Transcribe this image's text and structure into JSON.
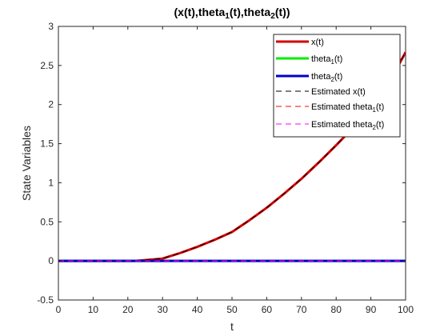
{
  "chart_data": {
    "type": "line",
    "title_parts": [
      "(x(t),theta",
      "1",
      "(t),theta",
      "2",
      "(t))"
    ],
    "xlabel": "t",
    "ylabel": "State Variables",
    "xlim": [
      0,
      100
    ],
    "ylim": [
      -0.5,
      3
    ],
    "xticks": [
      0,
      10,
      20,
      30,
      40,
      50,
      60,
      70,
      80,
      90,
      100
    ],
    "yticks": [
      -0.5,
      0,
      0.5,
      1,
      1.5,
      2,
      2.5,
      3
    ],
    "ytick_labels": [
      "-0.5",
      "0",
      "0.5",
      "1",
      "1.5",
      "2",
      "2.5",
      "3"
    ],
    "grid": false,
    "legend_position": "top-right",
    "x": [
      0,
      10,
      20,
      22,
      25,
      30,
      35,
      40,
      45,
      50,
      55,
      60,
      65,
      70,
      75,
      80,
      85,
      90,
      95,
      100
    ],
    "series": [
      {
        "key": "x",
        "legend_parts": [
          "x(t)"
        ],
        "color": "#d40000",
        "style": "solid",
        "width": 3,
        "values": [
          0,
          0,
          0,
          0,
          0.01,
          0.03,
          0.1,
          0.18,
          0.27,
          0.37,
          0.52,
          0.68,
          0.86,
          1.05,
          1.26,
          1.48,
          1.71,
          1.95,
          2.26,
          2.67
        ]
      },
      {
        "key": "theta1",
        "legend_parts": [
          "theta",
          "1",
          "(t)"
        ],
        "color": "#00ee00",
        "style": "solid",
        "width": 3,
        "values": [
          0,
          0,
          0,
          0,
          0,
          0,
          0,
          0,
          0,
          0,
          0,
          0,
          0,
          0,
          0,
          0,
          0,
          0,
          0,
          0
        ]
      },
      {
        "key": "theta2",
        "legend_parts": [
          "theta",
          "2",
          "(t)"
        ],
        "color": "#0000cc",
        "style": "solid",
        "width": 3,
        "values": [
          0,
          0,
          0,
          0,
          0,
          0,
          0,
          0,
          0,
          0,
          0,
          0,
          0,
          0,
          0,
          0,
          0,
          0,
          0,
          0
        ]
      },
      {
        "key": "x_est",
        "legend_parts": [
          "Estimated x(t)"
        ],
        "color": "#000000",
        "style": "dashed",
        "width": 1,
        "values": [
          0,
          0,
          0,
          0,
          0.01,
          0.03,
          0.1,
          0.18,
          0.27,
          0.37,
          0.52,
          0.68,
          0.86,
          1.05,
          1.26,
          1.48,
          1.71,
          1.95,
          2.26,
          2.67
        ]
      },
      {
        "key": "theta1_est",
        "legend_parts": [
          "Estimated theta",
          "1",
          "(t)"
        ],
        "color": "#ff0000",
        "style": "dashed",
        "width": 1,
        "values": [
          0,
          0,
          0,
          0,
          0,
          0,
          0,
          0,
          0,
          0,
          0,
          0,
          0,
          0,
          0,
          0,
          0,
          0,
          0,
          0
        ]
      },
      {
        "key": "theta2_est",
        "legend_parts": [
          "Estimated theta",
          "2",
          "(t)"
        ],
        "color": "#ff00ff",
        "style": "dashed",
        "width": 1,
        "values": [
          0,
          0,
          0,
          0,
          0,
          0,
          0,
          0,
          0,
          0,
          0,
          0,
          0,
          0,
          0,
          0,
          0,
          0,
          0,
          0
        ]
      }
    ]
  }
}
